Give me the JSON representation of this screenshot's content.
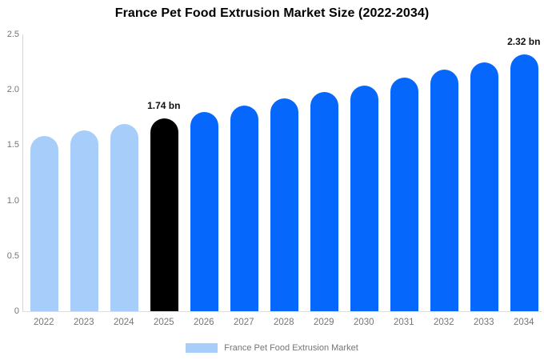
{
  "title": "France Pet Food Extrusion Market Size (2022-2034)",
  "chart_data": {
    "type": "bar",
    "title": "France Pet Food Extrusion Market Size (2022-2034)",
    "categories": [
      "2022",
      "2023",
      "2024",
      "2025",
      "2026",
      "2027",
      "2028",
      "2029",
      "2030",
      "2031",
      "2032",
      "2033",
      "2034"
    ],
    "values": [
      1.58,
      1.63,
      1.69,
      1.74,
      1.8,
      1.86,
      1.92,
      1.98,
      2.04,
      2.11,
      2.18,
      2.25,
      2.32
    ],
    "unit": "bn",
    "bar_colors": [
      "#A7CEFA",
      "#A7CEFA",
      "#A7CEFA",
      "#000000",
      "#0667FC",
      "#0667FC",
      "#0667FC",
      "#0667FC",
      "#0667FC",
      "#0667FC",
      "#0667FC",
      "#0667FC",
      "#0667FC"
    ],
    "color_roles": {
      "historical": "#A7CEFA",
      "highlight": "#000000",
      "forecast": "#0667FC"
    },
    "xlabel": "",
    "ylabel": "",
    "ylim": [
      0,
      2.5
    ],
    "yticks": [
      "0",
      "0.5",
      "1.0",
      "1.5",
      "2.0",
      "2.5"
    ],
    "ytick_values": [
      0,
      0.5,
      1.0,
      1.5,
      2.0,
      2.5
    ],
    "grid": false,
    "background": "#ffffff",
    "annotations": [
      {
        "category": "2025",
        "text": "1.74 bn"
      },
      {
        "category": "2034",
        "text": "2.32 bn"
      }
    ],
    "legend": {
      "position": "bottom",
      "label": "France Pet Food Extrusion Market",
      "swatch_color": "#A7CEFA"
    }
  }
}
